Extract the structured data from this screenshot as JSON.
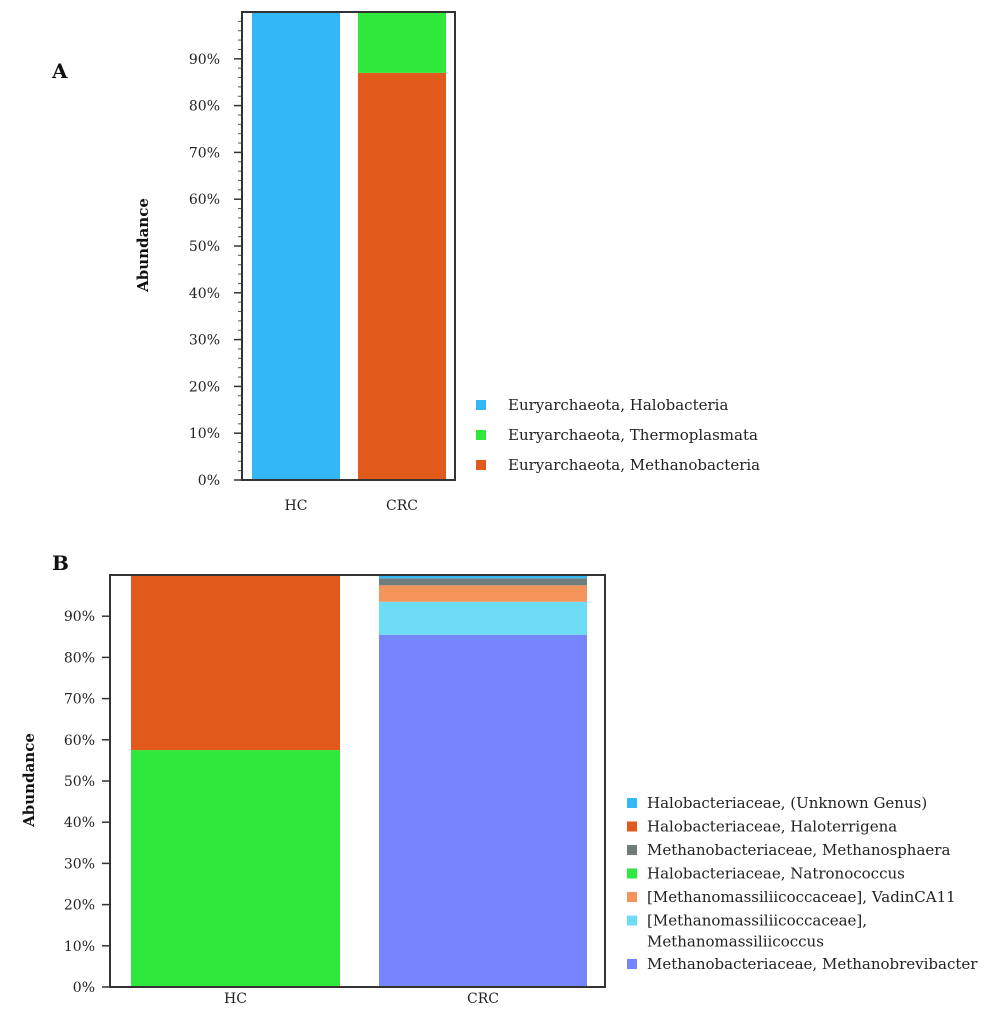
{
  "chart_data": [
    {
      "type": "bar",
      "stacked": true,
      "panel": "A",
      "ylabel": "Abundance",
      "ylim": [
        0,
        100
      ],
      "yticks": [
        "0%",
        "10%",
        "20%",
        "30%",
        "40%",
        "50%",
        "60%",
        "70%",
        "80%",
        "90%"
      ],
      "categories": [
        "HC",
        "CRC"
      ],
      "legend_position": "right",
      "series": [
        {
          "name": "Euryarchaeota, Methanobacteria",
          "color": "#e15a1b",
          "values": [
            0,
            87
          ]
        },
        {
          "name": "Euryarchaeota, Thermoplasmata",
          "color": "#2ee83c",
          "values": [
            0,
            13
          ]
        },
        {
          "name": "Euryarchaeota, Halobacteria",
          "color": "#31b8f5",
          "values": [
            100,
            0
          ]
        }
      ],
      "legend_order": [
        "Euryarchaeota, Halobacteria",
        "Euryarchaeota, Thermoplasmata",
        "Euryarchaeota, Methanobacteria"
      ]
    },
    {
      "type": "bar",
      "stacked": true,
      "panel": "B",
      "ylabel": "Abundance",
      "ylim": [
        0,
        100
      ],
      "yticks": [
        "0%",
        "10%",
        "20%",
        "30%",
        "40%",
        "50%",
        "60%",
        "70%",
        "80%",
        "90%"
      ],
      "categories": [
        "HC",
        "CRC"
      ],
      "legend_position": "right",
      "series": [
        {
          "name": "Halobacteriaceae, Natronococcus",
          "color": "#2ee83c",
          "values": [
            57.5,
            0
          ]
        },
        {
          "name": "Halobacteriaceae, Haloterrigena",
          "color": "#e15a1b",
          "values": [
            42.5,
            0
          ]
        },
        {
          "name": "Methanobacteriaceae, Methanobrevibacter",
          "color": "#7585fb",
          "values": [
            0,
            85.5
          ]
        },
        {
          "name": "[Methanomassiliicoccaceae], Methanomassiliicoccus",
          "color": "#6ddcf5",
          "values": [
            0,
            8
          ]
        },
        {
          "name": "[Methanomassiliicoccaceae], VadinCA11",
          "color": "#f3945a",
          "values": [
            0,
            4
          ]
        },
        {
          "name": "Methanobacteriaceae, Methanosphaera",
          "color": "#6e7c7a",
          "values": [
            0,
            1.7
          ]
        },
        {
          "name": "Halobacteriaceae, (Unknown Genus)",
          "color": "#31b8f5",
          "values": [
            0,
            0.8
          ]
        }
      ],
      "legend_order": [
        "Halobacteriaceae, (Unknown Genus)",
        "Halobacteriaceae, Haloterrigena",
        "Methanobacteriaceae, Methanosphaera",
        "Halobacteriaceae, Natronococcus",
        "[Methanomassiliicoccaceae], VadinCA11",
        "[Methanomassiliicoccaceae], Methanomassiliicoccus",
        "Methanobacteriaceae, Methanobrevibacter"
      ]
    }
  ]
}
